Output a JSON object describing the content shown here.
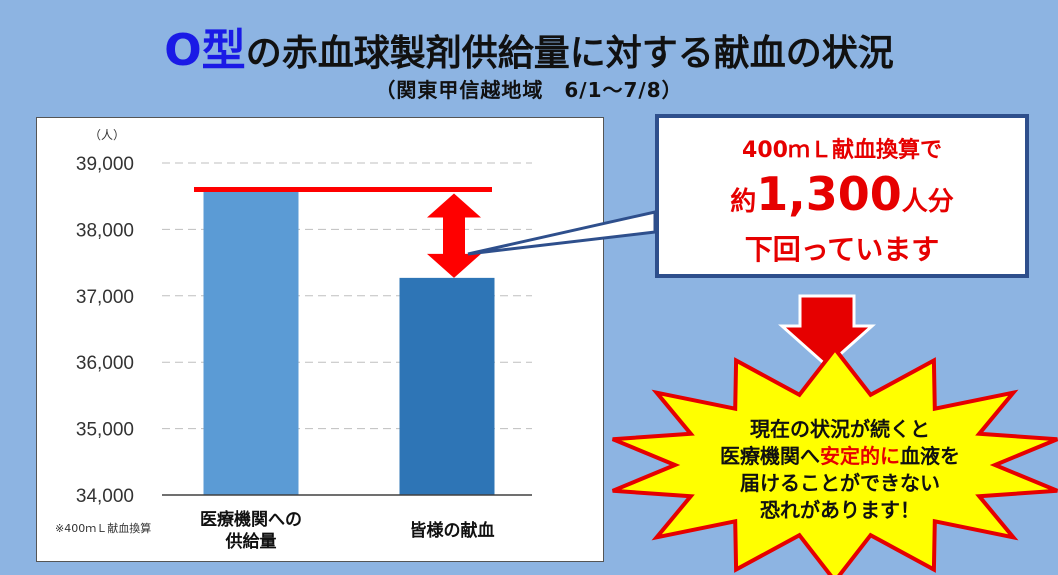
{
  "title": {
    "highlight": "O型",
    "rest": "の赤血球製剤供給量に対する献血の状況"
  },
  "subtitle": "（関東甲信越地域　6/1～7/8）",
  "chart_data": {
    "type": "bar",
    "unit_label": "（人）",
    "categories": [
      "医療機関への\n供給量",
      "皆様の献血"
    ],
    "values": [
      38600,
      37270
    ],
    "ylim": [
      34000,
      39000
    ],
    "yticks": [
      "39,000",
      "38,000",
      "37,000",
      "36,000",
      "35,000",
      "34,000"
    ],
    "ytick_values": [
      39000,
      38000,
      37000,
      36000,
      35000,
      34000
    ],
    "grid": true,
    "note": "※400ｍＬ献血換算",
    "bar_colors": [
      "#5B9BD5",
      "#2E75B6"
    ]
  },
  "callout": {
    "line1": "400ｍＬ献血換算で",
    "line2_prefix": "約",
    "line2_big": "1,300",
    "line2_suffix": "人分",
    "line3": "下回っています"
  },
  "burst": {
    "line1": "現在の状況が続くと",
    "line2_a": "医療機関へ",
    "line2_red": "安定的に",
    "line2_b": "血液を",
    "line3": "届けることができない",
    "line4": "恐れがあります！"
  },
  "colors": {
    "background": "#8DB4E2",
    "accent_red": "#E60000",
    "title_blue": "#1A1AE6",
    "box_border": "#2E4F8C",
    "burst_fill": "#FFFF00"
  }
}
